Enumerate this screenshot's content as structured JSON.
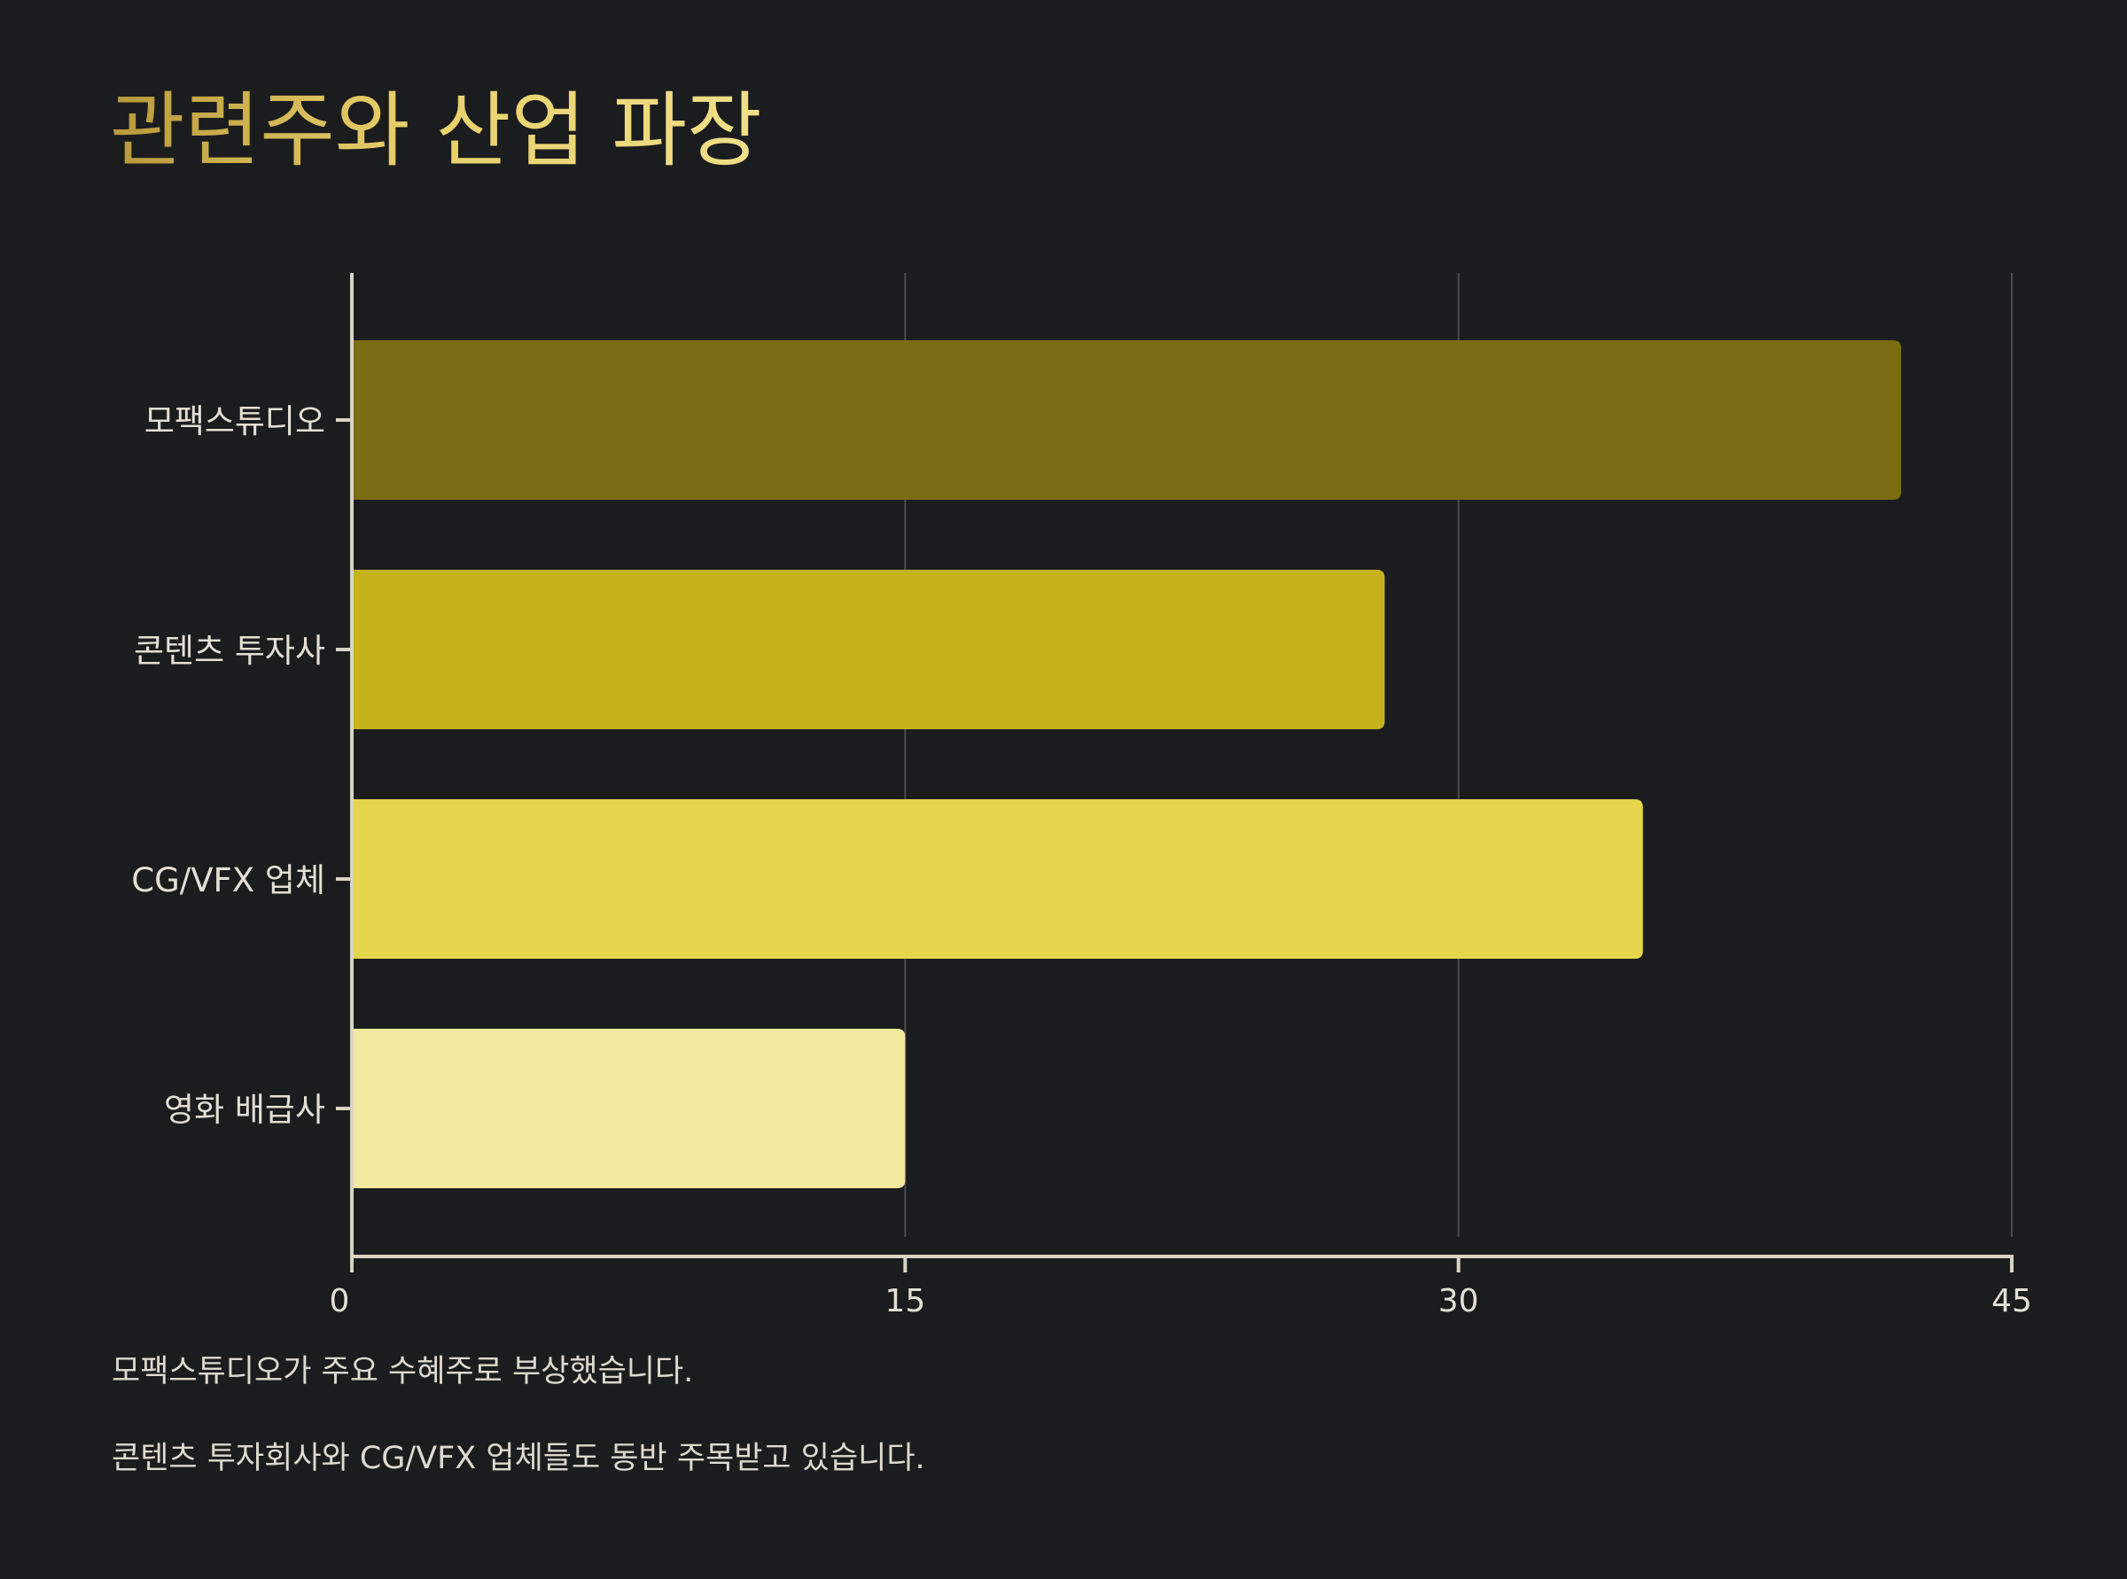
{
  "title": "관련주와 산업 파장",
  "colors": {
    "background": "#1b1c1e",
    "axis": "#d8d4c4",
    "grid": "#4a4b4d",
    "label": "#e4e0d6",
    "bars": [
      "#7a6c12",
      "#c6b21b",
      "#e6d64e",
      "#f2e89e"
    ]
  },
  "chart_data": {
    "type": "bar",
    "orientation": "horizontal",
    "categories": [
      "모팩스튜디오",
      "콘텐츠 투자사",
      "CG/VFX 업체",
      "영화 배급사"
    ],
    "values": [
      42,
      28,
      35,
      15
    ],
    "xlim": [
      0,
      45
    ],
    "xticks": [
      "0",
      "15",
      "30",
      "45"
    ],
    "xlabel": "",
    "ylabel": "",
    "grid": "vertical",
    "legend": "none"
  },
  "notes": [
    "모팩스튜디오가 주요 수혜주로 부상했습니다.",
    "콘텐츠 투자회사와 CG/VFX 업체들도 동반 주목받고 있습니다."
  ]
}
